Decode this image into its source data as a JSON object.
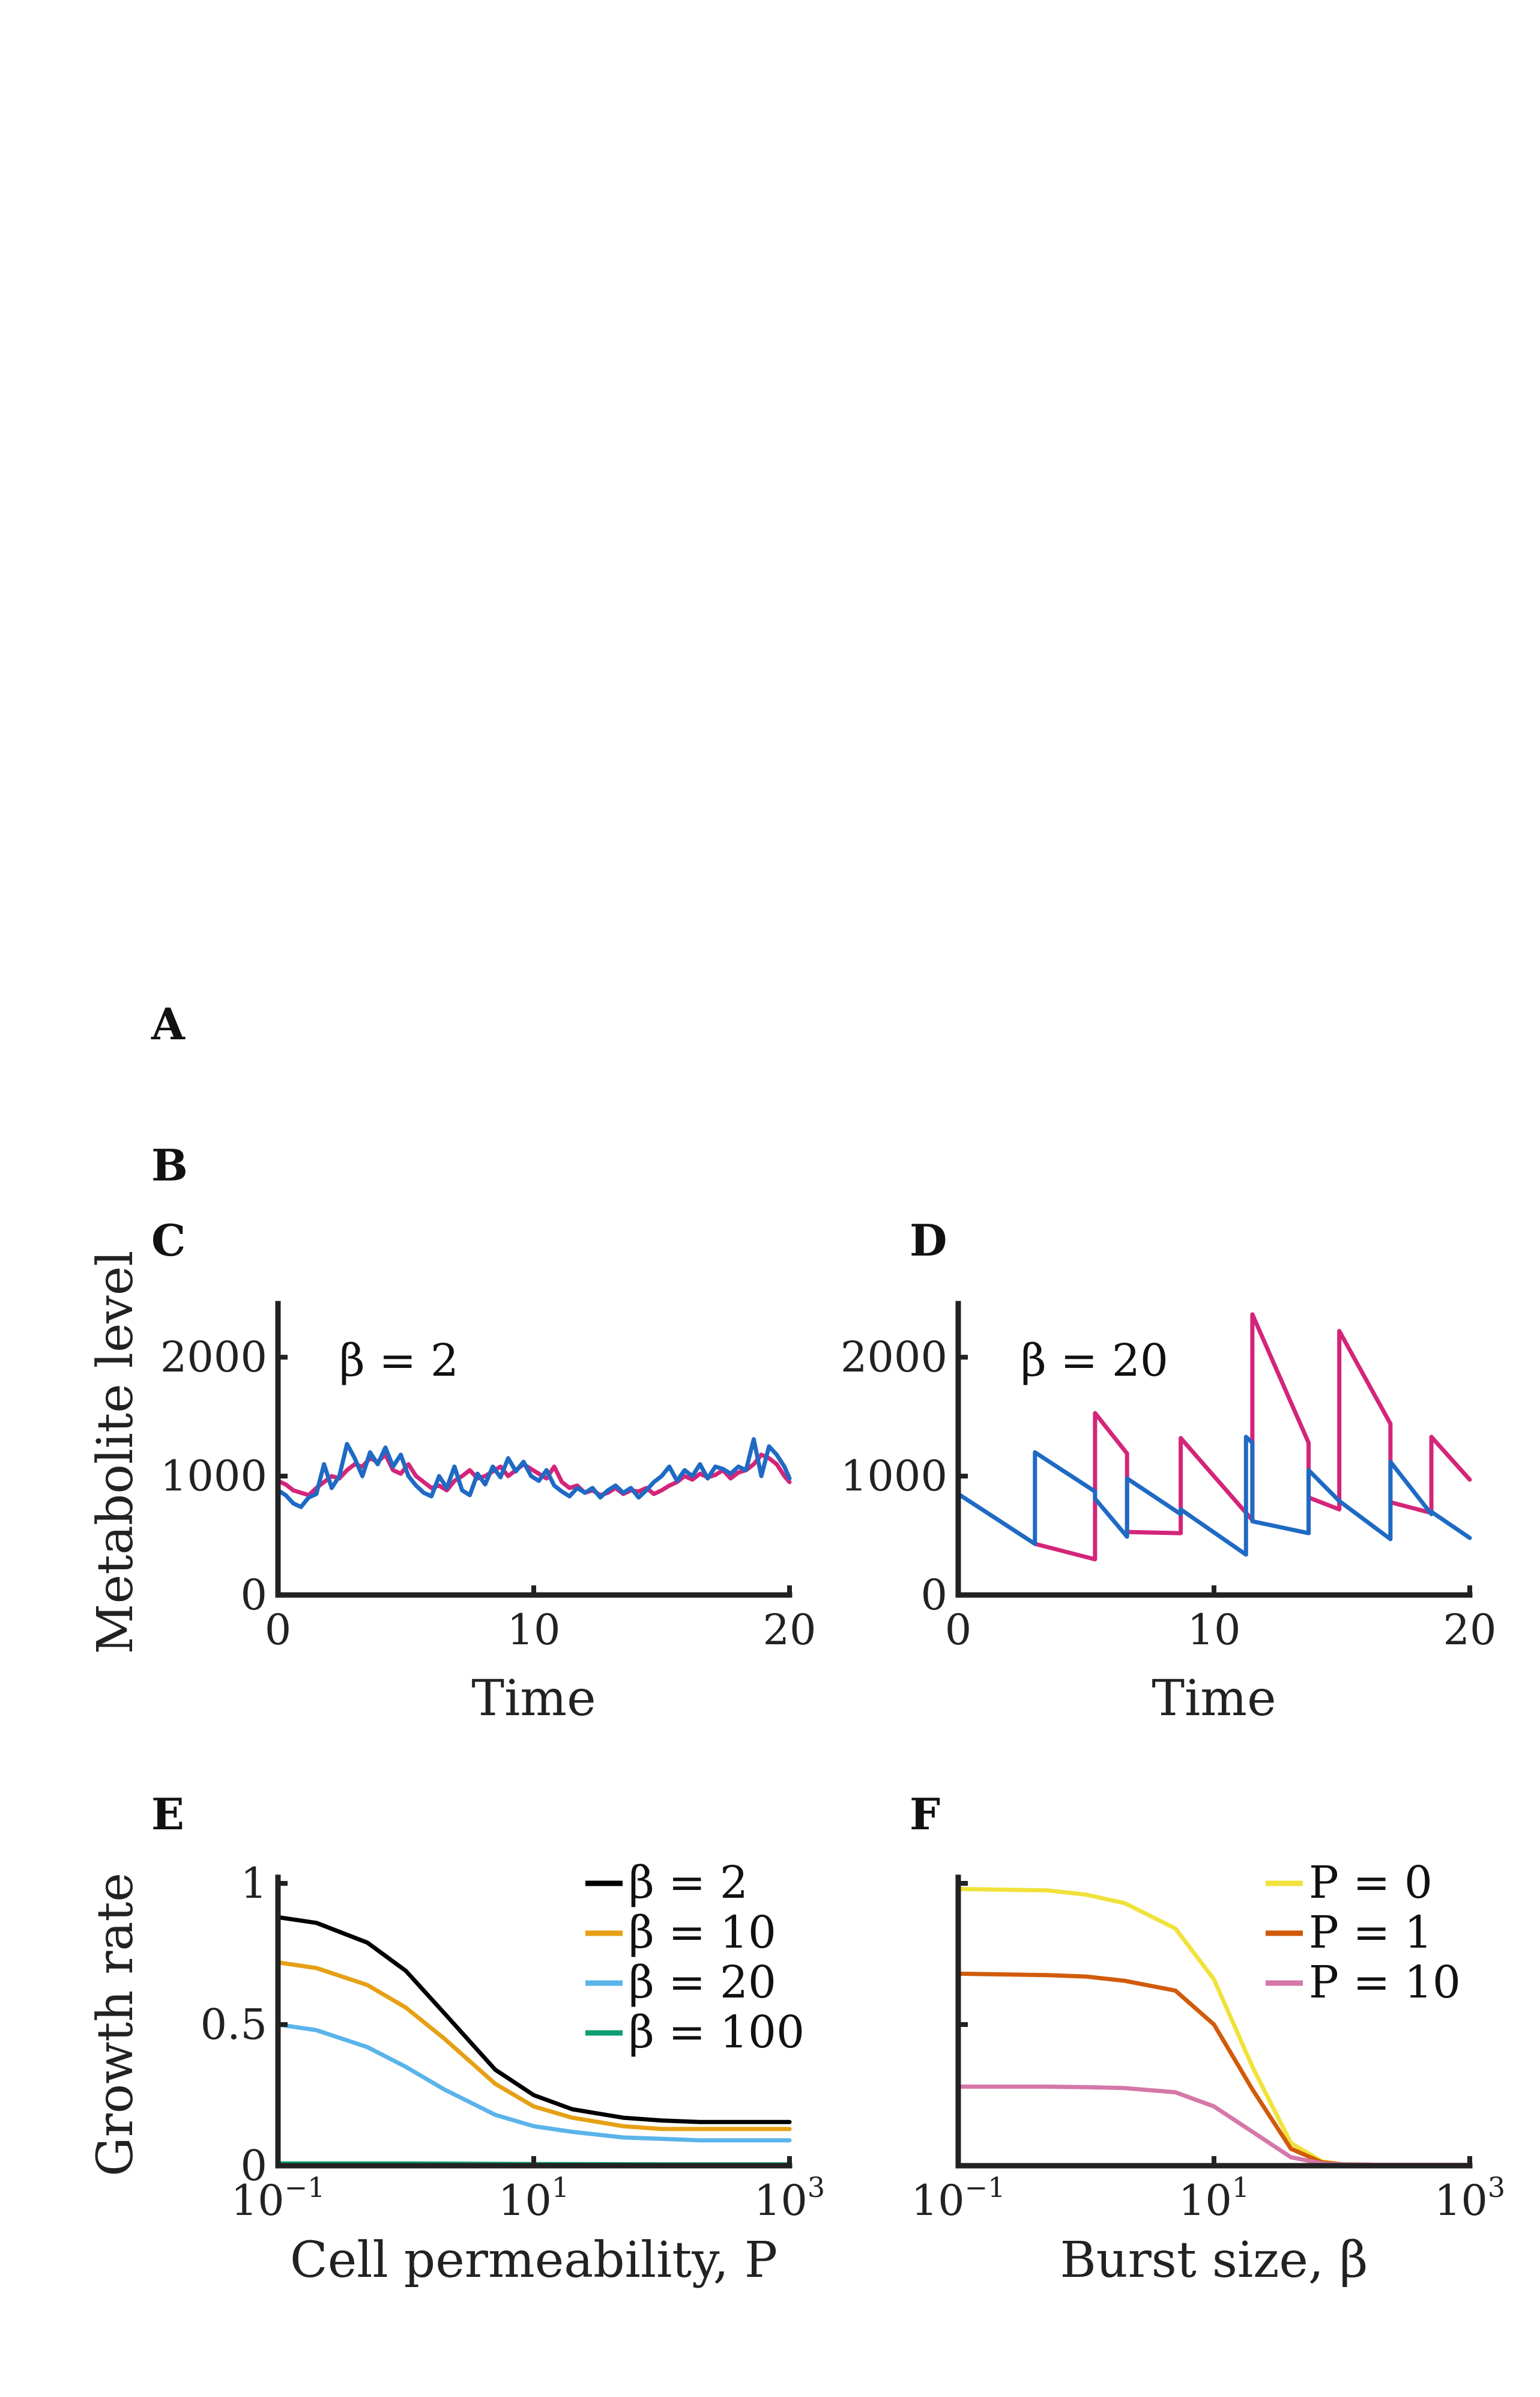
{
  "panels": {
    "A": "A",
    "B": "B",
    "C": "C",
    "D": "D",
    "E": "E",
    "F": "F"
  },
  "chart_data": [
    {
      "panel": "C",
      "type": "line",
      "annotation": "β = 2",
      "xlabel": "Time",
      "ylabel": "Metabolite level",
      "xlim": [
        0,
        20
      ],
      "ylim": [
        0,
        2400
      ],
      "xticks": [
        0,
        10,
        20
      ],
      "xtick_labels": [
        "0",
        "10",
        "20"
      ],
      "yticks": [
        0,
        1000,
        2000
      ],
      "ytick_labels": [
        "0",
        "1000",
        "2000"
      ],
      "series": [
        {
          "color": "#D4257A",
          "x": [
            0,
            0.3,
            0.6,
            0.9,
            1.2,
            1.5,
            1.8,
            2.1,
            2.4,
            2.7,
            3.0,
            3.3,
            3.6,
            3.9,
            4.2,
            4.5,
            4.8,
            5.1,
            5.4,
            5.7,
            6.0,
            6.3,
            6.6,
            6.9,
            7.2,
            7.5,
            7.8,
            8.1,
            8.4,
            8.7,
            9.0,
            9.3,
            9.6,
            9.9,
            10.2,
            10.5,
            10.8,
            11.1,
            11.4,
            11.7,
            12.0,
            12.3,
            12.6,
            12.9,
            13.2,
            13.5,
            13.8,
            14.1,
            14.4,
            14.7,
            15.0,
            15.3,
            15.6,
            15.9,
            16.2,
            16.5,
            16.8,
            17.1,
            17.4,
            17.7,
            18.0,
            18.3,
            18.6,
            18.9,
            19.2,
            19.5,
            19.8,
            20
          ],
          "y": [
            960,
            930,
            880,
            860,
            840,
            900,
            950,
            1000,
            980,
            1050,
            1100,
            1080,
            1150,
            1120,
            1180,
            1050,
            1020,
            1100,
            1000,
            950,
            900,
            920,
            880,
            960,
            1000,
            1050,
            980,
            1000,
            1040,
            1080,
            1000,
            1050,
            1100,
            1060,
            1020,
            980,
            1080,
            950,
            900,
            920,
            860,
            880,
            840,
            860,
            900,
            850,
            880,
            870,
            900,
            850,
            880,
            920,
            950,
            1000,
            970,
            1020,
            990,
            1010,
            1050,
            980,
            1030,
            1050,
            1100,
            1180,
            1150,
            1100,
            1000,
            950
          ]
        },
        {
          "color": "#1F6AC4",
          "x": [
            0,
            0.3,
            0.6,
            0.9,
            1.2,
            1.5,
            1.8,
            2.1,
            2.4,
            2.7,
            3.0,
            3.3,
            3.6,
            3.9,
            4.2,
            4.5,
            4.8,
            5.1,
            5.4,
            5.7,
            6.0,
            6.3,
            6.6,
            6.9,
            7.2,
            7.5,
            7.8,
            8.1,
            8.4,
            8.7,
            9.0,
            9.3,
            9.6,
            9.9,
            10.2,
            10.5,
            10.8,
            11.1,
            11.4,
            11.7,
            12.0,
            12.3,
            12.6,
            12.9,
            13.2,
            13.5,
            13.8,
            14.1,
            14.4,
            14.7,
            15.0,
            15.3,
            15.6,
            15.9,
            16.2,
            16.5,
            16.8,
            17.1,
            17.4,
            17.7,
            18.0,
            18.3,
            18.6,
            18.9,
            19.2,
            19.5,
            19.8,
            20
          ],
          "y": [
            880,
            840,
            770,
            740,
            820,
            850,
            1100,
            900,
            1000,
            1270,
            1150,
            1000,
            1200,
            1100,
            1240,
            1080,
            1180,
            1000,
            920,
            860,
            830,
            1000,
            900,
            1080,
            880,
            840,
            1020,
            930,
            1080,
            990,
            1150,
            1040,
            1120,
            1000,
            960,
            1050,
            920,
            870,
            830,
            900,
            860,
            900,
            820,
            880,
            920,
            860,
            900,
            820,
            880,
            950,
            1000,
            1080,
            960,
            1050,
            1000,
            1100,
            980,
            1080,
            1060,
            1020,
            1080,
            1050,
            1310,
            1000,
            1250,
            1180,
            1080,
            980
          ]
        }
      ]
    },
    {
      "panel": "D",
      "type": "line",
      "annotation": "β = 20",
      "xlabel": "Time",
      "ylabel": "",
      "xlim": [
        0,
        20
      ],
      "ylim": [
        0,
        2400
      ],
      "xticks": [
        0,
        10,
        20
      ],
      "xtick_labels": [
        "0",
        "10",
        "20"
      ],
      "yticks": [
        0,
        1000,
        2000
      ],
      "ytick_labels": [
        "0",
        "1000",
        "2000"
      ],
      "series": [
        {
          "color": "#D4257A",
          "x": [
            3.0,
            5.35,
            5.35,
            6.6,
            6.6,
            8.7,
            8.7,
            11.5,
            11.5,
            13.7,
            13.7,
            14.9,
            14.9,
            16.9,
            16.9,
            18.5,
            18.5,
            20
          ],
          "y": [
            430,
            300,
            1530,
            1190,
            530,
            520,
            1320,
            630,
            2360,
            1280,
            820,
            720,
            2220,
            1440,
            780,
            690,
            1330,
            970
          ]
        },
        {
          "color": "#1F6AC4",
          "x": [
            0,
            3.0,
            3.0,
            5.35,
            5.35,
            6.6,
            6.6,
            8.7,
            8.7,
            11.25,
            11.25,
            11.5,
            11.5,
            13.7,
            13.7,
            14.9,
            14.9,
            16.9,
            16.9,
            18.5,
            18.5,
            20
          ],
          "y": [
            850,
            430,
            1200,
            870,
            810,
            490,
            980,
            680,
            720,
            340,
            1330,
            1280,
            620,
            520,
            1050,
            790,
            790,
            470,
            1120,
            680,
            700,
            480
          ]
        }
      ]
    },
    {
      "panel": "E",
      "type": "line",
      "xlabel": "Cell permeability, P",
      "ylabel": "Growth rate",
      "xscale": "log",
      "xlim": [
        0.1,
        1000
      ],
      "ylim": [
        0,
        1
      ],
      "xticks": [
        0.1,
        10,
        1000
      ],
      "xtick_base": [
        "10",
        "10",
        "10"
      ],
      "xtick_exp": [
        "−1",
        "1",
        "3"
      ],
      "yticks": [
        0,
        0.5,
        1
      ],
      "ytick_labels": [
        "0",
        "0.5",
        "1"
      ],
      "legend_position": "top-right",
      "series": [
        {
          "name": "β = 2",
          "color": "#000000",
          "x": [
            0.1,
            0.2,
            0.5,
            1,
            2,
            5,
            10,
            20,
            50,
            100,
            200,
            500,
            1000
          ],
          "y": [
            0.88,
            0.86,
            0.79,
            0.69,
            0.54,
            0.34,
            0.25,
            0.2,
            0.17,
            0.16,
            0.155,
            0.155,
            0.155
          ]
        },
        {
          "name": "β = 10",
          "color": "#E6A015",
          "x": [
            0.1,
            0.2,
            0.5,
            1,
            2,
            5,
            10,
            20,
            50,
            100,
            200,
            500,
            1000
          ],
          "y": [
            0.72,
            0.7,
            0.64,
            0.56,
            0.45,
            0.29,
            0.21,
            0.17,
            0.14,
            0.13,
            0.13,
            0.13,
            0.13
          ]
        },
        {
          "name": "β = 20",
          "color": "#5AB4EA",
          "x": [
            0.1,
            0.2,
            0.5,
            1,
            2,
            5,
            10,
            20,
            50,
            100,
            200,
            500,
            1000
          ],
          "y": [
            0.5,
            0.48,
            0.42,
            0.35,
            0.27,
            0.18,
            0.14,
            0.12,
            0.1,
            0.095,
            0.09,
            0.09,
            0.09
          ]
        },
        {
          "name": "β = 100",
          "color": "#0E9E74",
          "x": [
            0.1,
            1,
            10,
            100,
            1000
          ],
          "y": [
            0.008,
            0.008,
            0.006,
            0.005,
            0.005
          ]
        }
      ]
    },
    {
      "panel": "F",
      "type": "line",
      "xlabel": "Burst size, β",
      "ylabel": "",
      "xscale": "log",
      "xlim": [
        0.1,
        1000
      ],
      "ylim": [
        0,
        1
      ],
      "xticks": [
        0.1,
        10,
        1000
      ],
      "xtick_base": [
        "10",
        "10",
        "10"
      ],
      "xtick_exp": [
        "−1",
        "1",
        "3"
      ],
      "yticks": [
        0,
        0.5,
        1
      ],
      "legend_position": "top-right",
      "series": [
        {
          "name": "P = 0",
          "color": "#F1E23B",
          "x": [
            0.1,
            0.5,
            1,
            2,
            5,
            10,
            20,
            40,
            70,
            100,
            200,
            500,
            1000
          ],
          "y": [
            0.98,
            0.975,
            0.96,
            0.93,
            0.84,
            0.66,
            0.35,
            0.08,
            0.015,
            0.005,
            0.003,
            0.003,
            0.003
          ]
        },
        {
          "name": "P = 1",
          "color": "#D15B0A",
          "x": [
            0.1,
            0.5,
            1,
            2,
            5,
            10,
            20,
            40,
            70,
            100,
            200,
            500,
            1000
          ],
          "y": [
            0.68,
            0.675,
            0.67,
            0.655,
            0.62,
            0.5,
            0.27,
            0.06,
            0.012,
            0.005,
            0.003,
            0.003,
            0.003
          ]
        },
        {
          "name": "P = 10",
          "color": "#D577A8",
          "x": [
            0.1,
            0.5,
            1,
            2,
            5,
            10,
            20,
            40,
            70,
            100,
            200,
            500,
            1000
          ],
          "y": [
            0.28,
            0.28,
            0.278,
            0.275,
            0.26,
            0.21,
            0.12,
            0.03,
            0.008,
            0.004,
            0.003,
            0.003,
            0.003
          ]
        }
      ]
    }
  ]
}
